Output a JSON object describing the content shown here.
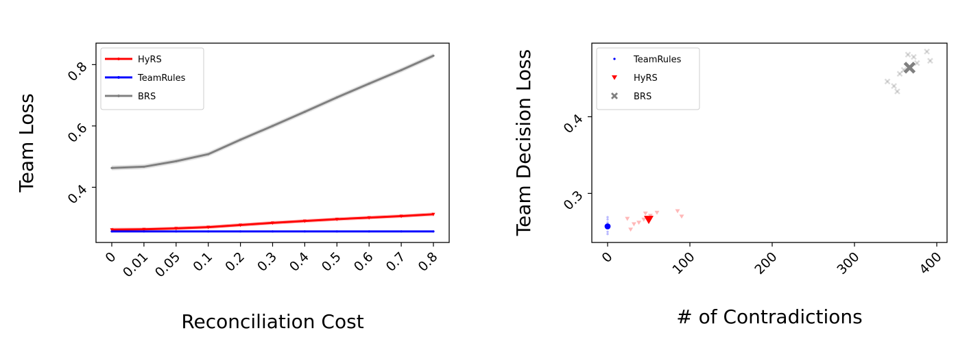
{
  "chart_data": [
    {
      "type": "line",
      "xlabel": "Reconciliation Cost",
      "ylabel": "Team Loss",
      "categories": [
        "0",
        "0.01",
        "0.05",
        "0.1",
        "0.2",
        "0.3",
        "0.4",
        "0.5",
        "0.6",
        "0.7",
        "0.8"
      ],
      "ylim": [
        0.22,
        0.87
      ],
      "yticks": [
        "0.4",
        "0.6",
        "0.8"
      ],
      "grid": false,
      "legend_position": "top-left",
      "series": [
        {
          "name": "HyRS",
          "color": "#ff0000",
          "band": 0.006,
          "values": [
            0.262,
            0.263,
            0.266,
            0.27,
            0.277,
            0.284,
            0.29,
            0.296,
            0.301,
            0.306,
            0.312
          ]
        },
        {
          "name": "TeamRules",
          "color": "#0000ff",
          "band": 0.002,
          "values": [
            0.256,
            0.256,
            0.256,
            0.256,
            0.256,
            0.256,
            0.256,
            0.256,
            0.256,
            0.256,
            0.256
          ]
        },
        {
          "name": "BRS",
          "color": "#808080",
          "band": 0.008,
          "values": [
            0.463,
            0.467,
            0.485,
            0.508,
            0.555,
            0.6,
            0.646,
            0.693,
            0.738,
            0.782,
            0.829
          ]
        }
      ]
    },
    {
      "type": "scatter",
      "xlabel": "# of Contradictions",
      "ylabel": "Team Decision Loss",
      "xlim": [
        -15,
        410
      ],
      "ylim": [
        0.236,
        0.496
      ],
      "xticks": [
        "0",
        "100",
        "200",
        "300",
        "400"
      ],
      "yticks": [
        "0.3",
        "0.4"
      ],
      "grid": false,
      "legend_position": "top-left",
      "series": [
        {
          "name": "TeamRules",
          "marker": "dot",
          "color": "#0000ff",
          "points": [
            [
              0,
              0.25
            ],
            [
              0,
              0.255
            ],
            [
              0,
              0.262
            ],
            [
              0,
              0.266
            ],
            [
              0,
              0.269
            ],
            [
              0,
              0.247
            ]
          ],
          "mean": [
            0,
            0.257
          ]
        },
        {
          "name": "HyRS",
          "marker": "triangle",
          "color": "#ff0000",
          "points": [
            [
              24,
              0.267
            ],
            [
              28,
              0.253
            ],
            [
              32,
              0.26
            ],
            [
              38,
              0.262
            ],
            [
              44,
              0.266
            ],
            [
              46,
              0.274
            ],
            [
              52,
              0.271
            ],
            [
              60,
              0.275
            ],
            [
              85,
              0.277
            ],
            [
              90,
              0.27
            ]
          ],
          "mean": [
            50,
            0.266
          ]
        },
        {
          "name": "BRS",
          "marker": "x",
          "color": "#808080",
          "points": [
            [
              340,
              0.446
            ],
            [
              348,
              0.44
            ],
            [
              352,
              0.433
            ],
            [
              355,
              0.456
            ],
            [
              360,
              0.461
            ],
            [
              365,
              0.481
            ],
            [
              372,
              0.478
            ],
            [
              376,
              0.47
            ],
            [
              388,
              0.485
            ],
            [
              392,
              0.473
            ]
          ],
          "mean": [
            367,
            0.464
          ]
        }
      ]
    }
  ]
}
